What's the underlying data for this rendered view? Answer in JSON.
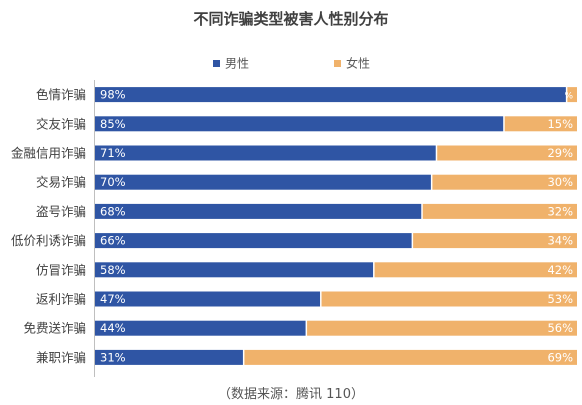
{
  "chart_data": {
    "type": "bar",
    "orientation": "horizontal",
    "stacked": true,
    "title": "不同诈骗类型被害人性别分布",
    "source": "（数据来源：腾讯 110）",
    "categories": [
      "色情诈骗",
      "交友诈骗",
      "金融信用诈骗",
      "交易诈骗",
      "盗号诈骗",
      "低价利诱诈骗",
      "仿冒诈骗",
      "返利诈骗",
      "免费送诈骗",
      "兼职诈骗"
    ],
    "series": [
      {
        "name": "男性",
        "color": "#2f55a4",
        "values": [
          98,
          85,
          71,
          70,
          68,
          66,
          58,
          47,
          44,
          31
        ],
        "labels": [
          "98%",
          "85%",
          "71%",
          "70%",
          "68%",
          "66%",
          "58%",
          "47%",
          "44%",
          "31%"
        ]
      },
      {
        "name": "女性",
        "color": "#f0b26b",
        "values": [
          2,
          15,
          29,
          30,
          32,
          34,
          42,
          53,
          56,
          69
        ],
        "labels": [
          "%",
          "15%",
          "29%",
          "30%",
          "32%",
          "34%",
          "42%",
          "53%",
          "56%",
          "69%"
        ]
      }
    ],
    "value_unit": "%",
    "xlim": [
      0,
      100
    ],
    "grid": false,
    "legend_position": "top"
  }
}
